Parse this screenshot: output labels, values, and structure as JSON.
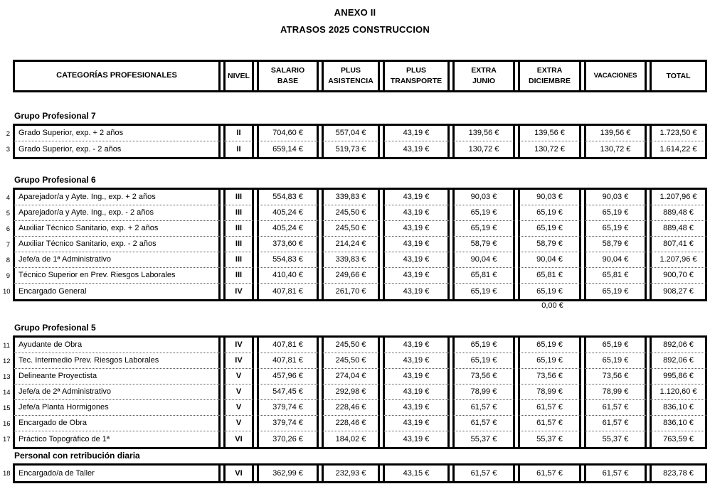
{
  "title": {
    "line1": "ANEXO II",
    "line2": "ATRASOS 2025 CONSTRUCCION"
  },
  "headers": {
    "categorias": "CATEGORÍAS PROFESIONALES",
    "nivel": "NIVEL",
    "salario": "SALARIO\nBASE",
    "asistencia": "PLUS\nASISTENCIA",
    "transporte": "PLUS\nTRANSPORTE",
    "junio": "EXTRA\nJUNIO",
    "diciembre": "EXTRA\nDICIEMBRE",
    "vacaciones": "VACACIONES",
    "total": "TOTAL"
  },
  "sections": [
    {
      "heading": "Grupo Profesional 7",
      "rows": [
        {
          "num": "2",
          "category": "Grado Superior, exp. + 2 años",
          "nivel": "II",
          "salario": "704,60 €",
          "asistencia": "557,04 €",
          "transporte": "43,19 €",
          "junio": "139,56 €",
          "diciembre": "139,56 €",
          "vacaciones": "139,56 €",
          "total": "1.723,50 €"
        },
        {
          "num": "3",
          "category": "Grado Superior, exp. - 2 años",
          "nivel": "II",
          "salario": "659,14 €",
          "asistencia": "519,73 €",
          "transporte": "43,19 €",
          "junio": "130,72 €",
          "diciembre": "130,72 €",
          "vacaciones": "130,72 €",
          "total": "1.614,22 €"
        }
      ]
    },
    {
      "heading": "Grupo Profesional 6",
      "rows": [
        {
          "num": "4",
          "category": "Aparejador/a y Ayte. Ing., exp. + 2 años",
          "nivel": "III",
          "salario": "554,83 €",
          "asistencia": "339,83 €",
          "transporte": "43,19 €",
          "junio": "90,03 €",
          "diciembre": "90,03 €",
          "vacaciones": "90,03 €",
          "total": "1.207,96 €"
        },
        {
          "num": "5",
          "category": "Aparejador/a y Ayte. Ing., exp. - 2 años",
          "nivel": "III",
          "salario": "405,24 €",
          "asistencia": "245,50 €",
          "transporte": "43,19 €",
          "junio": "65,19 €",
          "diciembre": "65,19 €",
          "vacaciones": "65,19 €",
          "total": "889,48 €"
        },
        {
          "num": "6",
          "category": "Auxiliar Técnico Sanitario, exp. + 2 años",
          "nivel": "III",
          "salario": "405,24 €",
          "asistencia": "245,50 €",
          "transporte": "43,19 €",
          "junio": "65,19 €",
          "diciembre": "65,19 €",
          "vacaciones": "65,19 €",
          "total": "889,48 €"
        },
        {
          "num": "7",
          "category": "Auxiliar Técnico Sanitario, exp. - 2 años",
          "nivel": "III",
          "salario": "373,60 €",
          "asistencia": "214,24 €",
          "transporte": "43,19 €",
          "junio": "58,79 €",
          "diciembre": "58,79 €",
          "vacaciones": "58,79 €",
          "total": "807,41 €"
        },
        {
          "num": "8",
          "category": "Jefe/a de 1ª Administrativo",
          "nivel": "III",
          "salario": "554,83 €",
          "asistencia": "339,83 €",
          "transporte": "43,19 €",
          "junio": "90,04 €",
          "diciembre": "90,04 €",
          "vacaciones": "90,04 €",
          "total": "1.207,96 €"
        },
        {
          "num": "9",
          "category": "Técnico Superior en Prev. Riesgos Laborales",
          "nivel": "III",
          "salario": "410,40 €",
          "asistencia": "249,66 €",
          "transporte": "43,19 €",
          "junio": "65,81 €",
          "diciembre": "65,81 €",
          "vacaciones": "65,81 €",
          "total": "900,70 €"
        },
        {
          "num": "10",
          "category": "Encargado General",
          "nivel": "IV",
          "salario": "407,81 €",
          "asistencia": "261,70 €",
          "transporte": "43,19 €",
          "junio": "65,19 €",
          "diciembre": "65,19 €",
          "vacaciones": "65,19 €",
          "total": "908,27 €"
        }
      ]
    },
    {
      "heading": "Grupo Profesional 5",
      "rows": [
        {
          "num": "11",
          "category": "Ayudante de Obra",
          "nivel": "IV",
          "salario": "407,81 €",
          "asistencia": "245,50 €",
          "transporte": "43,19 €",
          "junio": "65,19 €",
          "diciembre": "65,19 €",
          "vacaciones": "65,19 €",
          "total": "892,06 €"
        },
        {
          "num": "12",
          "category": "Tec. Intermedio Prev. Riesgos Laborales",
          "nivel": "IV",
          "salario": "407,81 €",
          "asistencia": "245,50 €",
          "transporte": "43,19 €",
          "junio": "65,19 €",
          "diciembre": "65,19 €",
          "vacaciones": "65,19 €",
          "total": "892,06 €"
        },
        {
          "num": "13",
          "category": "Delineante Proyectista",
          "nivel": "V",
          "salario": "457,96 €",
          "asistencia": "274,04 €",
          "transporte": "43,19 €",
          "junio": "73,56 €",
          "diciembre": "73,56 €",
          "vacaciones": "73,56 €",
          "total": "995,86 €"
        },
        {
          "num": "14",
          "category": "Jefe/a de 2ª Administrativo",
          "nivel": "V",
          "salario": "547,45 €",
          "asistencia": "292,98 €",
          "transporte": "43,19 €",
          "junio": "78,99 €",
          "diciembre": "78,99 €",
          "vacaciones": "78,99 €",
          "total": "1.120,60 €"
        },
        {
          "num": "15",
          "category": "Jefe/a Planta Hormigones",
          "nivel": "V",
          "salario": "379,74 €",
          "asistencia": "228,46 €",
          "transporte": "43,19 €",
          "junio": "61,57 €",
          "diciembre": "61,57 €",
          "vacaciones": "61,57 €",
          "total": "836,10 €"
        },
        {
          "num": "16",
          "category": "Encargado de Obra",
          "nivel": "V",
          "salario": "379,74 €",
          "asistencia": "228,46 €",
          "transporte": "43,19 €",
          "junio": "61,57 €",
          "diciembre": "61,57 €",
          "vacaciones": "61,57 €",
          "total": "836,10 €"
        },
        {
          "num": "17",
          "category": "Práctico Topográfico de 1ª",
          "nivel": "VI",
          "salario": "370,26 €",
          "asistencia": "184,02 €",
          "transporte": "43,19 €",
          "junio": "55,37 €",
          "diciembre": "55,37 €",
          "vacaciones": "55,37 €",
          "total": "763,59 €"
        }
      ]
    },
    {
      "heading": "Personal con retribución diaria",
      "rows": [
        {
          "num": "18",
          "category": "Encargado/a de Taller",
          "nivel": "VI",
          "salario": "362,99 €",
          "asistencia": "232,93 €",
          "transporte": "43,15 €",
          "junio": "61,57 €",
          "diciembre": "61,57 €",
          "vacaciones": "61,57 €",
          "total": "823,78 €"
        }
      ]
    }
  ],
  "stray_value": "0,00 €"
}
